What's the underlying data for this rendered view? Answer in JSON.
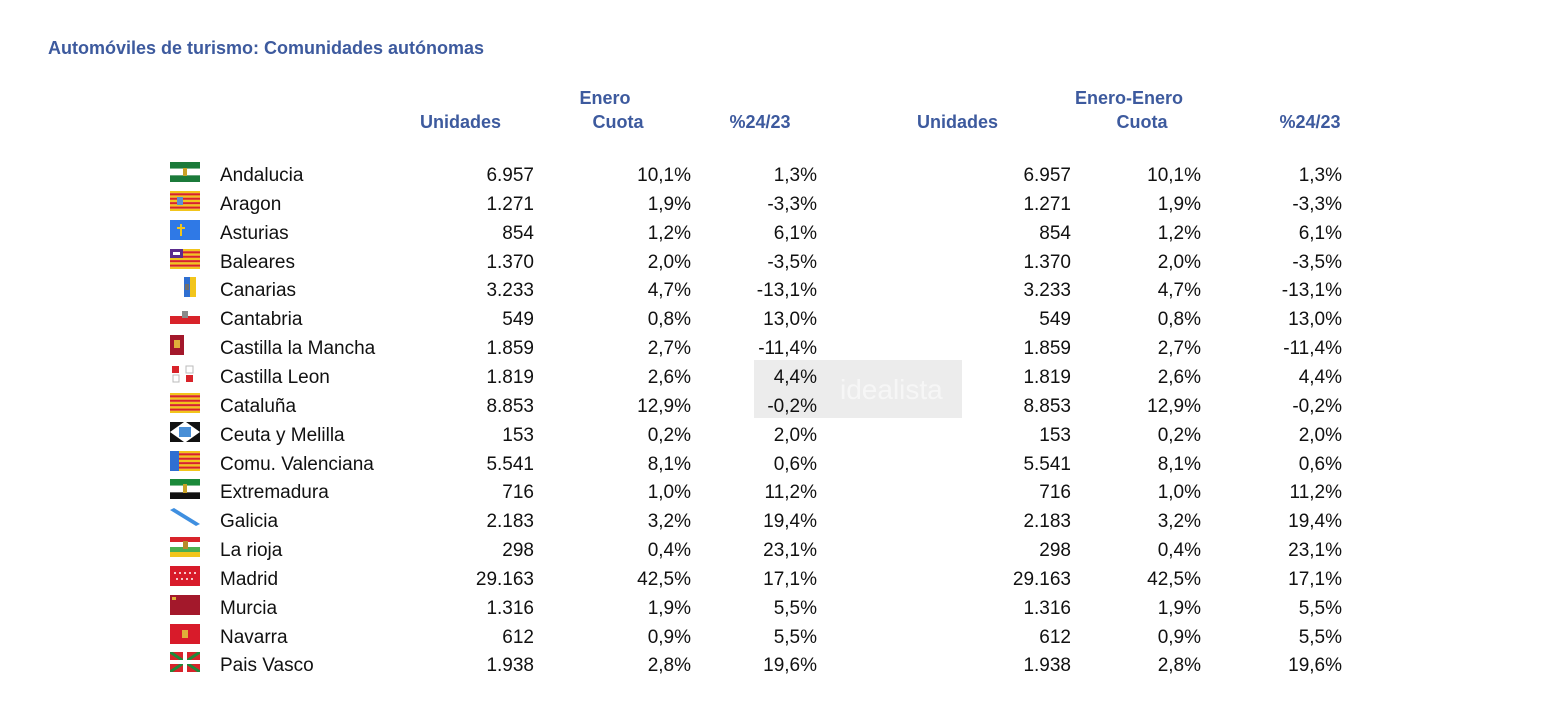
{
  "title": "Automóviles de turismo: Comunidades autónomas",
  "headers": {
    "group1": "Enero",
    "group2": "Enero-Enero",
    "unidades": "Unidades",
    "cuota": "Cuota",
    "pct": "%24/23"
  },
  "rows": [
    {
      "region": "Andalucia",
      "flag": "andalucia-flag",
      "u1": "6.957",
      "c1": "10,1%",
      "p1": "1,3%",
      "u2": "6.957",
      "c2": "10,1%",
      "p2": "1,3%"
    },
    {
      "region": "Aragon",
      "flag": "aragon-flag",
      "u1": "1.271",
      "c1": "1,9%",
      "p1": "-3,3%",
      "u2": "1.271",
      "c2": "1,9%",
      "p2": "-3,3%"
    },
    {
      "region": "Asturias",
      "flag": "asturias-flag",
      "u1": "854",
      "c1": "1,2%",
      "p1": "6,1%",
      "u2": "854",
      "c2": "1,2%",
      "p2": "6,1%"
    },
    {
      "region": "Baleares",
      "flag": "baleares-flag",
      "u1": "1.370",
      "c1": "2,0%",
      "p1": "-3,5%",
      "u2": "1.370",
      "c2": "2,0%",
      "p2": "-3,5%"
    },
    {
      "region": "Canarias",
      "flag": "canarias-flag",
      "u1": "3.233",
      "c1": "4,7%",
      "p1": "-13,1%",
      "u2": "3.233",
      "c2": "4,7%",
      "p2": "-13,1%"
    },
    {
      "region": "Cantabria",
      "flag": "cantabria-flag",
      "u1": "549",
      "c1": "0,8%",
      "p1": "13,0%",
      "u2": "549",
      "c2": "0,8%",
      "p2": "13,0%"
    },
    {
      "region": "Castilla la Mancha",
      "flag": "castilla-la-mancha-flag",
      "u1": "1.859",
      "c1": "2,7%",
      "p1": "-11,4%",
      "u2": "1.859",
      "c2": "2,7%",
      "p2": "-11,4%"
    },
    {
      "region": "Castilla Leon",
      "flag": "castilla-leon-flag",
      "u1": "1.819",
      "c1": "2,6%",
      "p1": "4,4%",
      "u2": "1.819",
      "c2": "2,6%",
      "p2": "4,4%"
    },
    {
      "region": "Cataluña",
      "flag": "cataluna-flag",
      "u1": "8.853",
      "c1": "12,9%",
      "p1": "-0,2%",
      "u2": "8.853",
      "c2": "12,9%",
      "p2": "-0,2%"
    },
    {
      "region": "Ceuta y Melilla",
      "flag": "ceuta-melilla-flag",
      "u1": "153",
      "c1": "0,2%",
      "p1": "2,0%",
      "u2": "153",
      "c2": "0,2%",
      "p2": "2,0%"
    },
    {
      "region": "Comu. Valenciana",
      "flag": "valenciana-flag",
      "u1": "5.541",
      "c1": "8,1%",
      "p1": "0,6%",
      "u2": "5.541",
      "c2": "8,1%",
      "p2": "0,6%"
    },
    {
      "region": "Extremadura",
      "flag": "extremadura-flag",
      "u1": "716",
      "c1": "1,0%",
      "p1": "11,2%",
      "u2": "716",
      "c2": "1,0%",
      "p2": "11,2%"
    },
    {
      "region": "Galicia",
      "flag": "galicia-flag",
      "u1": "2.183",
      "c1": "3,2%",
      "p1": "19,4%",
      "u2": "2.183",
      "c2": "3,2%",
      "p2": "19,4%"
    },
    {
      "region": "La rioja",
      "flag": "la-rioja-flag",
      "u1": "298",
      "c1": "0,4%",
      "p1": "23,1%",
      "u2": "298",
      "c2": "0,4%",
      "p2": "23,1%"
    },
    {
      "region": "Madrid",
      "flag": "madrid-flag",
      "u1": "29.163",
      "c1": "42,5%",
      "p1": "17,1%",
      "u2": "29.163",
      "c2": "42,5%",
      "p2": "17,1%"
    },
    {
      "region": "Murcia",
      "flag": "murcia-flag",
      "u1": "1.316",
      "c1": "1,9%",
      "p1": "5,5%",
      "u2": "1.316",
      "c2": "1,9%",
      "p2": "5,5%"
    },
    {
      "region": "Navarra",
      "flag": "navarra-flag",
      "u1": "612",
      "c1": "0,9%",
      "p1": "5,5%",
      "u2": "612",
      "c2": "0,9%",
      "p2": "5,5%"
    },
    {
      "region": "Pais Vasco",
      "flag": "pais-vasco-flag",
      "u1": "1.938",
      "c1": "2,8%",
      "p1": "19,6%",
      "u2": "1.938",
      "c2": "2,8%",
      "p2": "19,6%"
    }
  ]
}
